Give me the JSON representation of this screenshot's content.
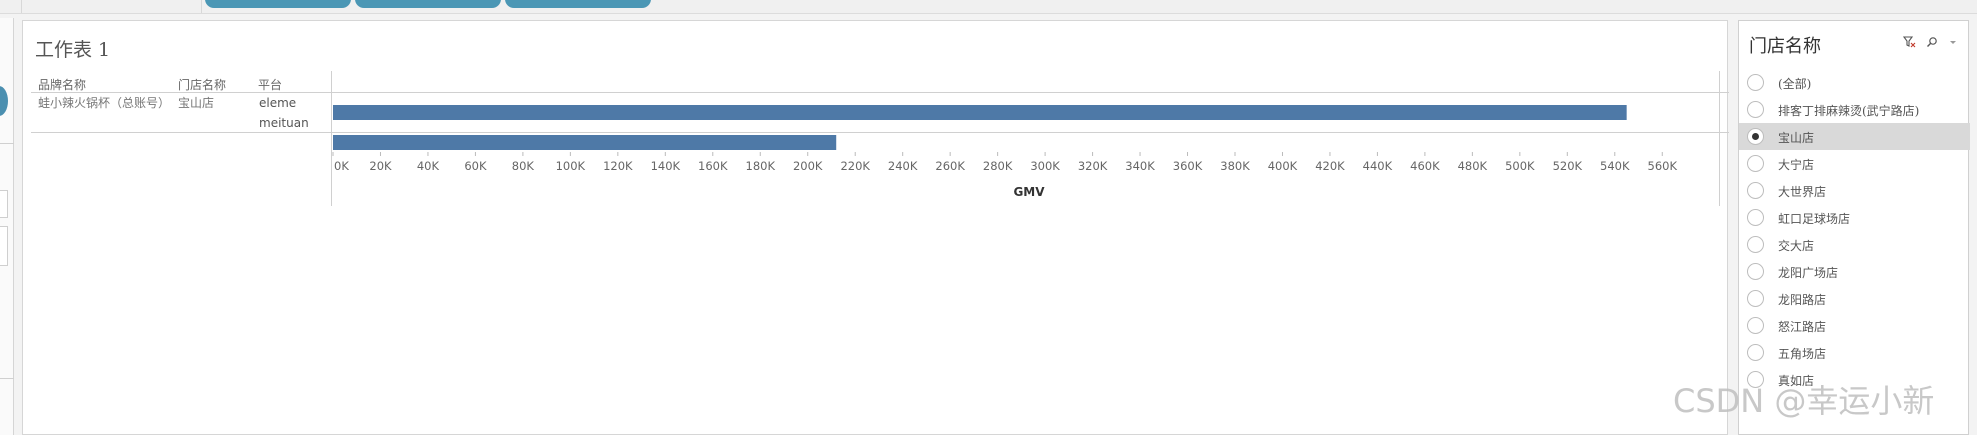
{
  "worksheet": {
    "title": "工作表 1",
    "headers": {
      "variety": "品牌名称",
      "store": "门店名称",
      "platform": "平台"
    },
    "row": {
      "variety": "蛙小辣火锅杯（总账号）",
      "store": "宝山店"
    }
  },
  "chart_data": {
    "type": "bar",
    "orientation": "horizontal",
    "categories": [
      "eleme",
      "meituan"
    ],
    "values": [
      545000,
      212000
    ],
    "xlabel": "GMV",
    "ylabel": "",
    "xlim": [
      0,
      570000
    ],
    "x_ticks": [
      "0K",
      "20K",
      "40K",
      "60K",
      "80K",
      "100K",
      "120K",
      "140K",
      "160K",
      "180K",
      "200K",
      "220K",
      "240K",
      "260K",
      "280K",
      "300K",
      "320K",
      "340K",
      "360K",
      "380K",
      "400K",
      "420K",
      "440K",
      "460K",
      "480K",
      "500K",
      "520K",
      "540K",
      "560K"
    ],
    "bar_color": "#4e79a7",
    "grid": false
  },
  "filter": {
    "title": "门店名称",
    "options": [
      {
        "label": "(全部)",
        "selected": false
      },
      {
        "label": "排客丁排麻辣烫(武宁路店)",
        "selected": false
      },
      {
        "label": "宝山店",
        "selected": true
      },
      {
        "label": "大宁店",
        "selected": false
      },
      {
        "label": "大世界店",
        "selected": false
      },
      {
        "label": "虹口足球场店",
        "selected": false
      },
      {
        "label": "交大店",
        "selected": false
      },
      {
        "label": "龙阳广场店",
        "selected": false
      },
      {
        "label": "龙阳路店",
        "selected": false
      },
      {
        "label": "怒江路店",
        "selected": false
      },
      {
        "label": "五角场店",
        "selected": false
      },
      {
        "label": "真如店",
        "selected": false
      }
    ],
    "icons": [
      "clear-filter-icon",
      "search-icon",
      "dropdown-icon"
    ]
  },
  "watermark": "CSDN @幸运小新"
}
